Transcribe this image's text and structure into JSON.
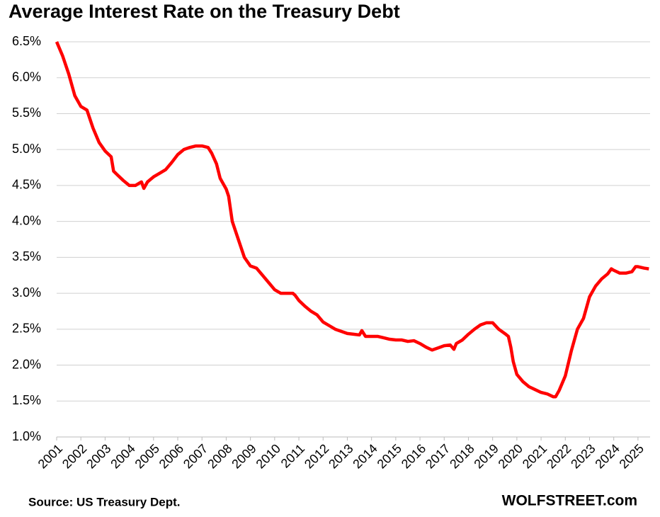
{
  "chart_data": {
    "type": "line",
    "title": "Average Interest Rate on the Treasury Debt",
    "annotations": [
      "Source: US Treasury Dept.",
      "WOLFSTREET.com"
    ],
    "x": [
      2001.0,
      2001.25,
      2001.5,
      2001.75,
      2002.0,
      2002.25,
      2002.5,
      2002.75,
      2003.0,
      2003.25,
      2003.35,
      2003.5,
      2003.75,
      2004.0,
      2004.25,
      2004.5,
      2004.6,
      2004.75,
      2005.0,
      2005.25,
      2005.5,
      2005.75,
      2006.0,
      2006.25,
      2006.5,
      2006.75,
      2007.0,
      2007.25,
      2007.4,
      2007.6,
      2007.75,
      2008.0,
      2008.1,
      2008.25,
      2008.5,
      2008.75,
      2009.0,
      2009.25,
      2009.5,
      2009.75,
      2010.0,
      2010.25,
      2010.5,
      2010.75,
      2010.85,
      2011.0,
      2011.25,
      2011.5,
      2011.75,
      2012.0,
      2012.25,
      2012.5,
      2012.75,
      2013.0,
      2013.25,
      2013.5,
      2013.6,
      2013.75,
      2014.0,
      2014.25,
      2014.5,
      2014.75,
      2015.0,
      2015.25,
      2015.5,
      2015.75,
      2016.0,
      2016.25,
      2016.5,
      2016.75,
      2017.0,
      2017.25,
      2017.4,
      2017.5,
      2017.75,
      2018.0,
      2018.25,
      2018.5,
      2018.75,
      2019.0,
      2019.25,
      2019.5,
      2019.65,
      2019.75,
      2019.85,
      2020.0,
      2020.25,
      2020.5,
      2020.75,
      2021.0,
      2021.25,
      2021.5,
      2021.6,
      2021.75,
      2022.0,
      2022.25,
      2022.5,
      2022.75,
      2023.0,
      2023.25,
      2023.5,
      2023.75,
      2023.9,
      2024.0,
      2024.25,
      2024.5,
      2024.75,
      2024.9,
      2025.0,
      2025.25,
      2025.45
    ],
    "series": [
      {
        "color": "#ff0000",
        "values": [
          6.5,
          6.3,
          6.05,
          5.75,
          5.6,
          5.55,
          5.3,
          5.1,
          4.98,
          4.9,
          4.7,
          4.65,
          4.57,
          4.5,
          4.5,
          4.55,
          4.46,
          4.55,
          4.62,
          4.67,
          4.72,
          4.82,
          4.93,
          5.0,
          5.03,
          5.05,
          5.05,
          5.03,
          4.95,
          4.8,
          4.6,
          4.45,
          4.35,
          4.0,
          3.75,
          3.5,
          3.38,
          3.35,
          3.25,
          3.15,
          3.05,
          3.0,
          3.0,
          3.0,
          2.97,
          2.9,
          2.82,
          2.75,
          2.7,
          2.6,
          2.55,
          2.5,
          2.47,
          2.44,
          2.43,
          2.42,
          2.48,
          2.4,
          2.4,
          2.4,
          2.38,
          2.36,
          2.35,
          2.35,
          2.33,
          2.34,
          2.3,
          2.25,
          2.21,
          2.24,
          2.27,
          2.28,
          2.22,
          2.3,
          2.35,
          2.43,
          2.5,
          2.56,
          2.59,
          2.59,
          2.5,
          2.44,
          2.4,
          2.25,
          2.05,
          1.87,
          1.77,
          1.7,
          1.66,
          1.62,
          1.6,
          1.56,
          1.56,
          1.65,
          1.85,
          2.2,
          2.5,
          2.65,
          2.95,
          3.1,
          3.2,
          3.27,
          3.34,
          3.32,
          3.28,
          3.28,
          3.3,
          3.37,
          3.37,
          3.35,
          3.34
        ]
      }
    ],
    "xlim": [
      2001,
      2025.5
    ],
    "xticks": [
      2001,
      2002,
      2003,
      2004,
      2005,
      2006,
      2007,
      2008,
      2009,
      2010,
      2011,
      2012,
      2013,
      2014,
      2015,
      2016,
      2017,
      2018,
      2019,
      2020,
      2021,
      2022,
      2023,
      2024,
      2025
    ],
    "ylim": [
      1.0,
      6.5
    ],
    "yticks": [
      {
        "value": 1.0,
        "label": "1.0%"
      },
      {
        "value": 1.5,
        "label": "1.5%"
      },
      {
        "value": 2.0,
        "label": "2.0%"
      },
      {
        "value": 2.5,
        "label": "2.5%"
      },
      {
        "value": 3.0,
        "label": "3.0%"
      },
      {
        "value": 3.5,
        "label": "3.5%"
      },
      {
        "value": 4.0,
        "label": "4.0%"
      },
      {
        "value": 4.5,
        "label": "4.5%"
      },
      {
        "value": 5.0,
        "label": "5.0%"
      },
      {
        "value": 5.5,
        "label": "5.5%"
      },
      {
        "value": 6.0,
        "label": "6.0%"
      },
      {
        "value": 6.5,
        "label": "6.5%"
      }
    ],
    "grid": true
  }
}
